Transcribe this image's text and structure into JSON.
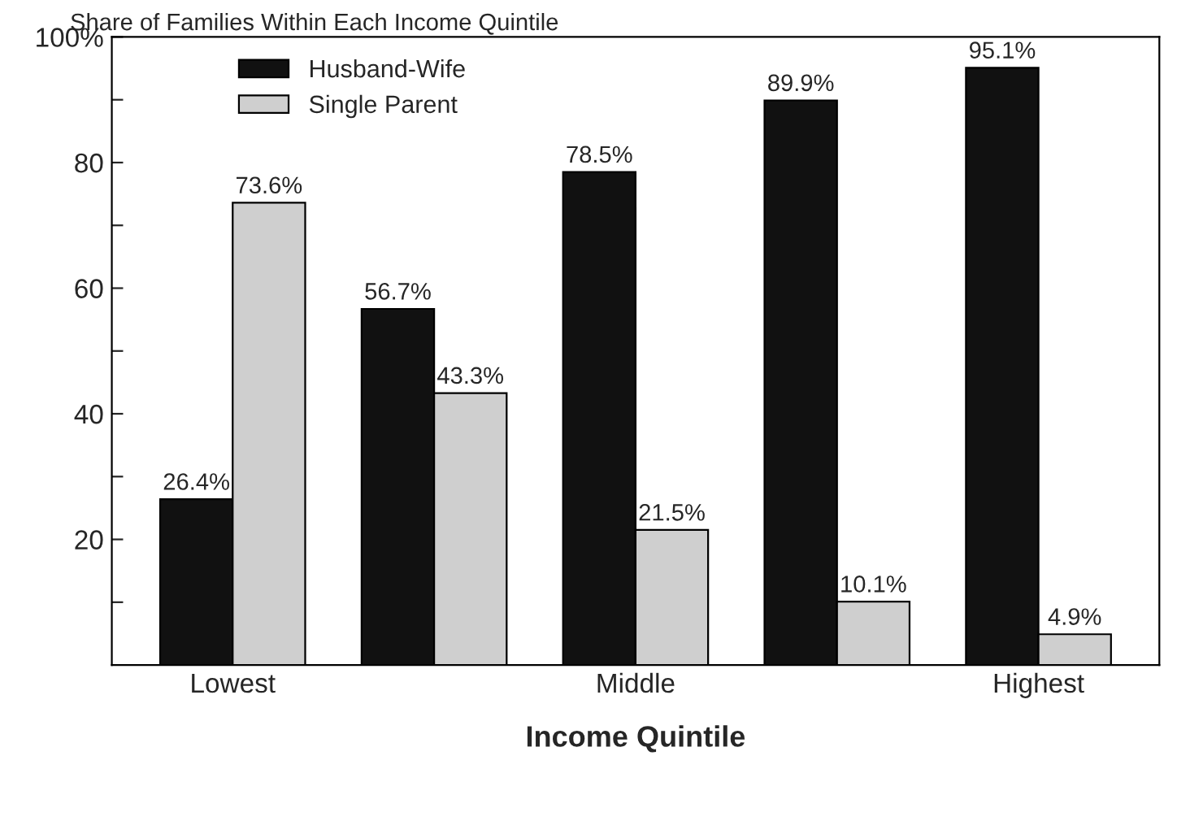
{
  "chart_data": {
    "type": "bar",
    "title": "Share of Families Within Each Income Quintile",
    "xlabel": "Income Quintile",
    "categories": [
      "Lowest",
      null,
      "Middle",
      null,
      "Highest"
    ],
    "series": [
      {
        "name": "Husband-Wife",
        "color": "#111111",
        "values": [
          26.4,
          56.7,
          78.5,
          89.9,
          95.1
        ],
        "value_labels": [
          "26.4%",
          "56.7%",
          "78.5%",
          "89.9%",
          "95.1%"
        ]
      },
      {
        "name": "Single Parent",
        "color": "#cfcfcf",
        "values": [
          73.6,
          43.3,
          21.5,
          10.1,
          4.9
        ],
        "value_labels": [
          "73.6%",
          "43.3%",
          "21.5%",
          "10.1%",
          "4.9%"
        ]
      }
    ],
    "ylim": [
      0,
      100
    ],
    "yticks": [
      {
        "value": 10,
        "label": null
      },
      20,
      {
        "value": 30,
        "label": null
      },
      40,
      {
        "value": 50,
        "label": null
      },
      60,
      {
        "value": 70,
        "label": null
      },
      80,
      {
        "value": 90,
        "label": null
      },
      {
        "value": 100,
        "label": "100%"
      }
    ],
    "grid": false,
    "legend": "top left"
  }
}
